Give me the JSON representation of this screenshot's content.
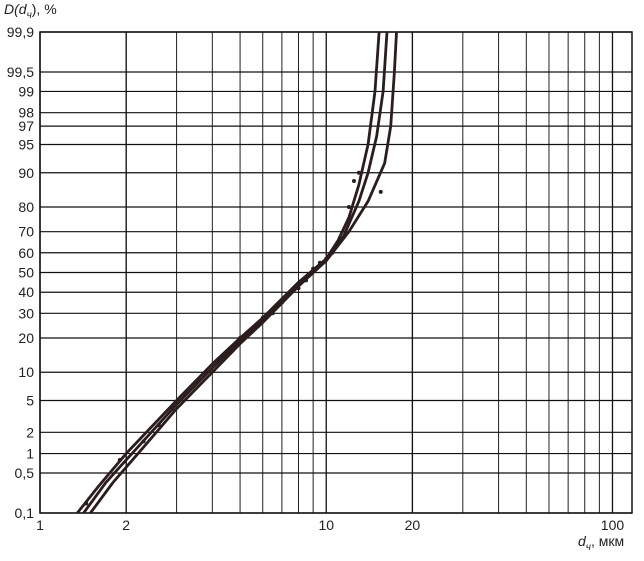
{
  "chart_data": {
    "type": "line",
    "y_label": {
      "prefix": "D(d",
      "sub": "ч",
      "suffix": "), %"
    },
    "x_label": {
      "prefix": "d",
      "sub": "ч",
      "suffix": ", мкм"
    },
    "xlog": true,
    "yscale": "probability",
    "grid": true,
    "xlim": [
      1,
      117
    ],
    "xticks": [
      1,
      2,
      10,
      20,
      100
    ],
    "ylim": [
      0.1,
      99.9
    ],
    "yticks": [
      {
        "value": 0.1,
        "label": "0,1"
      },
      {
        "value": 0.5,
        "label": "0,5"
      },
      1,
      2,
      5,
      10,
      20,
      30,
      40,
      50,
      60,
      70,
      80,
      90,
      95,
      97,
      98,
      99,
      {
        "value": 99.5,
        "label": "99,5"
      },
      {
        "value": 99.9,
        "label": "99,9"
      }
    ],
    "series": [
      {
        "color": "#2b1d1d",
        "x": [
          1.35,
          1.6,
          2,
          3,
          4,
          5,
          6,
          8,
          10,
          11,
          12,
          13,
          14,
          14.8,
          15.3
        ],
        "values": [
          0.1,
          0.3,
          1,
          5,
          12,
          20,
          28,
          45,
          57,
          66,
          76,
          87,
          95,
          99,
          99.9
        ]
      },
      {
        "color": "#2b1d1d",
        "x": [
          1.42,
          1.7,
          2,
          3,
          4,
          5,
          6,
          8,
          10,
          11.5,
          13,
          14,
          15,
          15.8,
          16.3
        ],
        "values": [
          0.1,
          0.35,
          0.8,
          4.5,
          11,
          19,
          27,
          44,
          56,
          68,
          82,
          90,
          96,
          99,
          99.9
        ]
      },
      {
        "color": "#2b1d1d",
        "x": [
          1.5,
          1.8,
          2.2,
          3,
          4,
          5,
          6,
          8,
          10,
          12,
          14,
          16,
          16.8,
          17.3,
          17.6
        ],
        "values": [
          0.1,
          0.35,
          1,
          4,
          10,
          18,
          26,
          43,
          56,
          70,
          82,
          92,
          97,
          99.5,
          99.9
        ]
      }
    ],
    "scatter": {
      "color": "#2b1d1d",
      "x": [
        1.45,
        1.9,
        2.3,
        2.6,
        2.9,
        3.2,
        3.5,
        3.8,
        4.2,
        4.6,
        5,
        5.5,
        6,
        6.5,
        7,
        7.5,
        8,
        8.5,
        9,
        9.5,
        10,
        10.5,
        11,
        12,
        12.5,
        13,
        15.5
      ],
      "values": [
        0.15,
        0.8,
        1.5,
        2.5,
        4,
        6,
        8,
        10,
        13,
        16,
        20,
        23,
        28,
        30,
        35,
        40,
        42,
        46,
        52,
        55,
        57,
        60,
        65,
        80,
        88,
        90,
        85
      ]
    }
  }
}
